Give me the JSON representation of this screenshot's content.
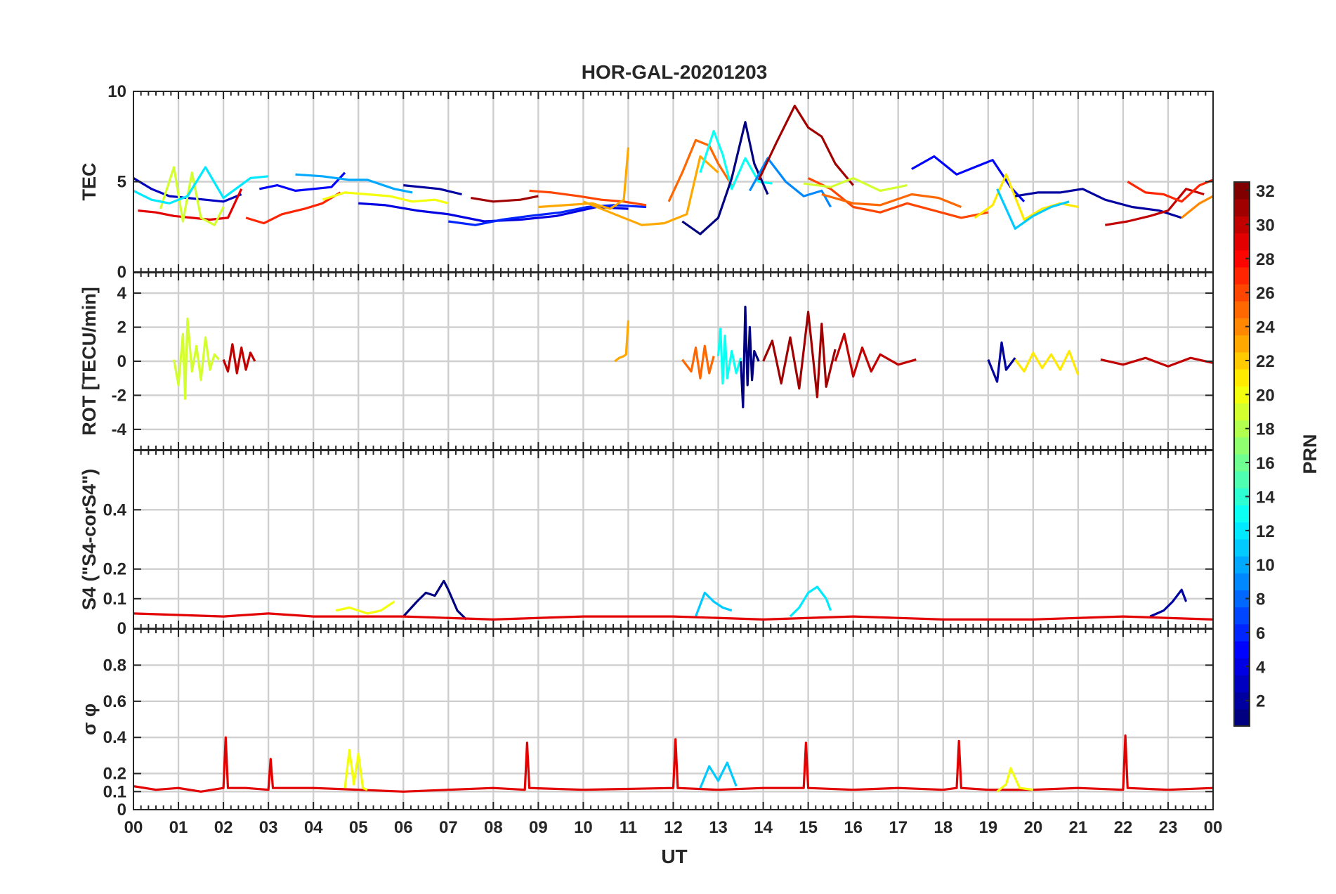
{
  "figure": {
    "title": "HOR-GAL-20201203"
  },
  "chart_data": [
    {
      "type": "line",
      "panel": "TEC",
      "ylabel": "TEC",
      "ylim": [
        0,
        10
      ],
      "yticks": [
        "0",
        "5",
        "10"
      ],
      "series": [
        {
          "prn": 3,
          "x": [
            0,
            0.4,
            0.8,
            1.2,
            1.6,
            2.0,
            2.4
          ],
          "y": [
            5.2,
            4.6,
            4.2,
            4.1,
            4.0,
            3.9,
            4.3
          ]
        },
        {
          "prn": 29,
          "x": [
            0.1,
            0.5,
            0.9,
            1.3,
            1.7,
            2.1,
            2.4
          ],
          "y": [
            3.4,
            3.3,
            3.1,
            3.0,
            2.9,
            3.0,
            4.6
          ]
        },
        {
          "prn": 19,
          "x": [
            0.6,
            0.9,
            1.1,
            1.3,
            1.5,
            1.8,
            2.0
          ],
          "y": [
            3.5,
            5.8,
            2.8,
            5.5,
            3.0,
            2.6,
            3.6
          ]
        },
        {
          "prn": 12,
          "x": [
            0.0,
            0.4,
            0.8,
            1.2,
            1.6,
            2.0,
            2.6,
            3.0
          ],
          "y": [
            4.5,
            4.0,
            3.8,
            4.2,
            5.8,
            4.1,
            5.2,
            5.3
          ]
        },
        {
          "prn": 27,
          "x": [
            2.5,
            2.9,
            3.3,
            3.8,
            4.2,
            4.6
          ],
          "y": [
            3.0,
            2.7,
            3.2,
            3.5,
            3.8,
            4.4
          ]
        },
        {
          "prn": 5,
          "x": [
            2.8,
            3.2,
            3.6,
            4.0,
            4.4,
            4.7
          ],
          "y": [
            4.6,
            4.8,
            4.5,
            4.6,
            4.7,
            5.5
          ]
        },
        {
          "prn": 10,
          "x": [
            3.6,
            4.2,
            4.8,
            5.2,
            5.8,
            6.2
          ],
          "y": [
            5.4,
            5.3,
            5.1,
            5.1,
            4.6,
            4.4
          ]
        },
        {
          "prn": 20,
          "x": [
            4.2,
            4.7,
            5.2,
            5.7,
            6.2,
            6.7,
            7.0
          ],
          "y": [
            4.0,
            4.4,
            4.3,
            4.2,
            3.9,
            4.0,
            3.8
          ]
        },
        {
          "prn": 4,
          "x": [
            5.0,
            5.6,
            6.3,
            7.0,
            7.8,
            8.6,
            9.4,
            10.3,
            11.0
          ],
          "y": [
            3.8,
            3.7,
            3.4,
            3.2,
            2.8,
            2.9,
            3.1,
            3.6,
            3.5
          ]
        },
        {
          "prn": 6,
          "x": [
            7.0,
            7.6,
            8.2,
            8.8,
            9.5,
            10.1,
            10.7,
            11.4
          ],
          "y": [
            2.8,
            2.6,
            2.9,
            3.1,
            3.3,
            3.6,
            3.7,
            3.6
          ]
        },
        {
          "prn": 2,
          "x": [
            6.0,
            6.4,
            6.8,
            7.3
          ],
          "y": [
            4.8,
            4.7,
            4.6,
            4.3
          ]
        },
        {
          "prn": 31,
          "x": [
            7.5,
            8.0,
            8.6,
            9.0
          ],
          "y": [
            4.1,
            3.9,
            4.0,
            4.2
          ]
        },
        {
          "prn": 26,
          "x": [
            8.8,
            9.3,
            9.9,
            10.4,
            10.9,
            11.4
          ],
          "y": [
            4.5,
            4.4,
            4.2,
            4.0,
            3.9,
            3.7
          ]
        },
        {
          "prn": 23,
          "x": [
            9.0,
            9.6,
            10.2,
            10.6,
            10.9,
            11.0
          ],
          "y": [
            3.6,
            3.7,
            3.8,
            3.5,
            4.0,
            6.9
          ]
        },
        {
          "prn": 23,
          "x": [
            10.0,
            10.7,
            11.3,
            11.8,
            12.3,
            12.6,
            13.0
          ],
          "y": [
            3.9,
            3.2,
            2.6,
            2.7,
            3.2,
            6.4,
            5.5
          ]
        },
        {
          "prn": 25,
          "x": [
            11.9,
            12.2,
            12.5,
            12.8,
            13.0,
            13.3
          ],
          "y": [
            3.9,
            5.5,
            7.3,
            7.0,
            6.0,
            4.8
          ]
        },
        {
          "prn": 13,
          "x": [
            12.6,
            12.9,
            13.1,
            13.3,
            13.6,
            13.9,
            14.2
          ],
          "y": [
            5.5,
            7.8,
            6.5,
            4.6,
            6.3,
            5.0,
            4.9
          ]
        },
        {
          "prn": 1,
          "x": [
            12.2,
            12.6,
            13.0,
            13.3,
            13.6,
            13.8,
            14.1
          ],
          "y": [
            2.8,
            2.1,
            3.0,
            5.2,
            8.3,
            6.0,
            4.3
          ]
        },
        {
          "prn": 9,
          "x": [
            13.7,
            14.1,
            14.5,
            14.9,
            15.3,
            15.5
          ],
          "y": [
            4.5,
            6.3,
            5.0,
            4.2,
            4.5,
            3.6
          ]
        },
        {
          "prn": 31,
          "x": [
            13.9,
            14.3,
            14.7,
            15.0,
            15.3,
            15.6,
            16.0
          ],
          "y": [
            5.1,
            7.2,
            9.2,
            8.0,
            7.5,
            6.0,
            4.8
          ]
        },
        {
          "prn": 26,
          "x": [
            15.0,
            15.5,
            16.0,
            16.6,
            17.2,
            17.8,
            18.4,
            19.0
          ],
          "y": [
            5.2,
            4.6,
            3.6,
            3.3,
            3.8,
            3.4,
            3.0,
            3.3
          ]
        },
        {
          "prn": 19,
          "x": [
            14.9,
            15.5,
            16.0,
            16.6,
            17.2
          ],
          "y": [
            4.9,
            4.7,
            5.2,
            4.5,
            4.8
          ]
        },
        {
          "prn": 5,
          "x": [
            17.3,
            17.8,
            18.3,
            18.7,
            19.1,
            19.5,
            19.8
          ],
          "y": [
            5.7,
            6.4,
            5.4,
            5.8,
            6.2,
            4.7,
            3.9
          ]
        },
        {
          "prn": 25,
          "x": [
            15.3,
            16.0,
            16.6,
            17.3,
            17.9,
            18.4
          ],
          "y": [
            4.3,
            3.8,
            3.7,
            4.3,
            4.1,
            3.6
          ]
        },
        {
          "prn": 21,
          "x": [
            18.7,
            19.1,
            19.4,
            19.8,
            20.2,
            20.6,
            21.0
          ],
          "y": [
            3.0,
            3.7,
            5.4,
            2.9,
            3.5,
            3.8,
            3.6
          ]
        },
        {
          "prn": 11,
          "x": [
            19.2,
            19.6,
            20.0,
            20.4,
            20.8
          ],
          "y": [
            4.6,
            2.4,
            3.1,
            3.6,
            3.9
          ]
        },
        {
          "prn": 2,
          "x": [
            19.6,
            20.1,
            20.6,
            21.1,
            21.6,
            22.2,
            22.8,
            23.3
          ],
          "y": [
            4.2,
            4.4,
            4.4,
            4.6,
            4.0,
            3.6,
            3.4,
            3.0
          ]
        },
        {
          "prn": 30,
          "x": [
            21.6,
            22.1,
            22.6,
            23.0,
            23.4,
            23.8
          ],
          "y": [
            2.6,
            2.8,
            3.1,
            3.4,
            4.6,
            4.3
          ]
        },
        {
          "prn": 27,
          "x": [
            22.1,
            22.5,
            22.9,
            23.3,
            23.7,
            24.0
          ],
          "y": [
            5.0,
            4.4,
            4.3,
            3.9,
            4.8,
            5.1
          ]
        },
        {
          "prn": 24,
          "x": [
            23.3,
            23.7,
            24.0
          ],
          "y": [
            3.0,
            3.8,
            4.2
          ]
        }
      ]
    },
    {
      "type": "line",
      "panel": "ROT",
      "ylabel": "ROT [TECU/min]",
      "ylim": [
        -5.2,
        5.2
      ],
      "yticks": [
        "-4",
        "-2",
        "0",
        "2",
        "4"
      ],
      "series": [
        {
          "prn": 19,
          "x": [
            0.9,
            1.0,
            1.1,
            1.15,
            1.2,
            1.3,
            1.4,
            1.5,
            1.6,
            1.7,
            1.8,
            1.9
          ],
          "y": [
            0.1,
            -1.4,
            1.6,
            -2.2,
            2.5,
            -0.6,
            0.9,
            -1.1,
            1.4,
            -0.5,
            0.4,
            0.1
          ]
        },
        {
          "prn": 30,
          "x": [
            2.0,
            2.1,
            2.2,
            2.3,
            2.4,
            2.5,
            2.6,
            2.7
          ],
          "y": [
            0.1,
            -0.6,
            1.0,
            -0.7,
            0.8,
            -0.5,
            0.5,
            0.0
          ]
        },
        {
          "prn": 23,
          "x": [
            10.7,
            10.8,
            10.9,
            10.95,
            11.0
          ],
          "y": [
            0.0,
            0.2,
            0.3,
            0.4,
            2.4
          ]
        },
        {
          "prn": 25,
          "x": [
            12.2,
            12.4,
            12.5,
            12.6,
            12.7,
            12.8,
            12.9
          ],
          "y": [
            0.1,
            -0.6,
            0.8,
            -1.0,
            0.9,
            -0.7,
            0.3
          ]
        },
        {
          "prn": 13,
          "x": [
            13.0,
            13.05,
            13.1,
            13.15,
            13.2,
            13.3,
            13.4,
            13.5
          ],
          "y": [
            0.3,
            1.9,
            -1.3,
            1.5,
            -1.0,
            0.6,
            -0.7,
            0.2
          ]
        },
        {
          "prn": 1,
          "x": [
            13.5,
            13.55,
            13.6,
            13.65,
            13.7,
            13.75,
            13.8,
            13.9
          ],
          "y": [
            0.0,
            -2.7,
            3.2,
            -1.4,
            2.0,
            -1.1,
            0.6,
            0.0
          ]
        },
        {
          "prn": 31,
          "x": [
            14.0,
            14.2,
            14.4,
            14.6,
            14.8,
            15.0,
            15.2,
            15.3,
            15.4,
            15.6
          ],
          "y": [
            0.0,
            1.2,
            -1.3,
            1.4,
            -1.6,
            2.9,
            -2.1,
            2.2,
            -1.5,
            0.7
          ]
        },
        {
          "prn": 30,
          "x": [
            15.6,
            15.8,
            16.0,
            16.2,
            16.4,
            16.6,
            17.0,
            17.4
          ],
          "y": [
            0.0,
            1.6,
            -0.9,
            0.8,
            -0.6,
            0.4,
            -0.2,
            0.1
          ]
        },
        {
          "prn": 2,
          "x": [
            19.0,
            19.2,
            19.3,
            19.4,
            19.6
          ],
          "y": [
            0.1,
            -1.2,
            1.1,
            -0.5,
            0.2
          ]
        },
        {
          "prn": 21,
          "x": [
            19.6,
            19.8,
            20.0,
            20.2,
            20.4,
            20.6,
            20.8,
            21.0
          ],
          "y": [
            0.1,
            -0.6,
            0.5,
            -0.4,
            0.4,
            -0.5,
            0.6,
            -0.8
          ]
        },
        {
          "prn": 30,
          "x": [
            21.5,
            22.0,
            22.5,
            23.0,
            23.5,
            24.0
          ],
          "y": [
            0.1,
            -0.2,
            0.2,
            -0.3,
            0.2,
            -0.1
          ]
        }
      ]
    },
    {
      "type": "line",
      "panel": "S4",
      "ylabel": "S4 (\"S4-corS4\")",
      "ylim": [
        0,
        0.6
      ],
      "yticks": [
        "0",
        "0.1",
        "0.2",
        "0.4"
      ],
      "series": [
        {
          "prn": 1,
          "x": [
            6.0,
            6.3,
            6.5,
            6.7,
            6.9,
            7.0,
            7.2,
            7.4
          ],
          "y": [
            0.04,
            0.09,
            0.12,
            0.11,
            0.16,
            0.13,
            0.06,
            0.03
          ]
        },
        {
          "prn": 11,
          "x": [
            12.5,
            12.7,
            12.9,
            13.1,
            13.3
          ],
          "y": [
            0.04,
            0.12,
            0.09,
            0.07,
            0.06
          ]
        },
        {
          "prn": 12,
          "x": [
            14.6,
            14.8,
            15.0,
            15.2,
            15.4,
            15.5
          ],
          "y": [
            0.04,
            0.07,
            0.12,
            0.14,
            0.1,
            0.06
          ]
        },
        {
          "prn": 2,
          "x": [
            22.6,
            22.9,
            23.1,
            23.3,
            23.4
          ],
          "y": [
            0.04,
            0.06,
            0.09,
            0.13,
            0.09
          ]
        },
        {
          "prn": 29,
          "x": [
            0,
            2,
            3,
            4,
            6,
            8,
            10,
            12,
            14,
            16,
            18,
            20,
            22,
            24
          ],
          "y": [
            0.05,
            0.04,
            0.05,
            0.04,
            0.04,
            0.03,
            0.04,
            0.04,
            0.03,
            0.04,
            0.03,
            0.03,
            0.04,
            0.03
          ]
        },
        {
          "prn": 20,
          "x": [
            4.5,
            4.8,
            5.2,
            5.5,
            5.8
          ],
          "y": [
            0.06,
            0.07,
            0.05,
            0.06,
            0.09
          ]
        }
      ]
    },
    {
      "type": "line",
      "panel": "sigma_phi",
      "ylabel": "σ φ",
      "ylim": [
        0,
        1
      ],
      "yticks": [
        "0",
        "0.1",
        "0.2",
        "0.4",
        "0.6",
        "0.8"
      ],
      "series": [
        {
          "prn": 29,
          "x": [
            0,
            0.5,
            1.0,
            1.5,
            2.0,
            2.05,
            2.1,
            2.5,
            3.0,
            3.05,
            3.1,
            4,
            5,
            6,
            7,
            8,
            8.7,
            8.75,
            8.8,
            10,
            12,
            12.05,
            12.1,
            13,
            14,
            14.9,
            14.95,
            15,
            16,
            17,
            18,
            18.3,
            18.35,
            18.4,
            19,
            20,
            21,
            22,
            22.05,
            22.1,
            23,
            24
          ],
          "y": [
            0.13,
            0.11,
            0.12,
            0.1,
            0.12,
            0.4,
            0.12,
            0.12,
            0.11,
            0.28,
            0.12,
            0.12,
            0.11,
            0.1,
            0.11,
            0.12,
            0.11,
            0.37,
            0.12,
            0.11,
            0.12,
            0.39,
            0.12,
            0.11,
            0.12,
            0.12,
            0.37,
            0.12,
            0.11,
            0.12,
            0.11,
            0.12,
            0.38,
            0.12,
            0.11,
            0.11,
            0.12,
            0.11,
            0.41,
            0.12,
            0.11,
            0.12
          ]
        },
        {
          "prn": 20,
          "x": [
            4.7,
            4.8,
            4.9,
            5.0,
            5.1,
            5.2
          ],
          "y": [
            0.12,
            0.33,
            0.14,
            0.31,
            0.12,
            0.11
          ]
        },
        {
          "prn": 11,
          "x": [
            12.6,
            12.8,
            13.0,
            13.2,
            13.4
          ],
          "y": [
            0.12,
            0.24,
            0.16,
            0.26,
            0.13
          ]
        },
        {
          "prn": 20,
          "x": [
            19.2,
            19.4,
            19.5,
            19.7,
            20.0
          ],
          "y": [
            0.1,
            0.14,
            0.23,
            0.12,
            0.11
          ]
        }
      ]
    }
  ],
  "xaxis": {
    "label": "UT",
    "ticks": [
      "00",
      "01",
      "02",
      "03",
      "04",
      "05",
      "06",
      "07",
      "08",
      "09",
      "10",
      "11",
      "12",
      "13",
      "14",
      "15",
      "16",
      "17",
      "18",
      "19",
      "20",
      "21",
      "22",
      "23",
      "00"
    ]
  },
  "colorbar": {
    "label": "PRN",
    "colormap": "jet",
    "range": [
      1,
      32
    ],
    "ticks": [
      "2",
      "4",
      "6",
      "8",
      "10",
      "12",
      "14",
      "16",
      "18",
      "20",
      "22",
      "24",
      "26",
      "28",
      "30",
      "32"
    ]
  }
}
